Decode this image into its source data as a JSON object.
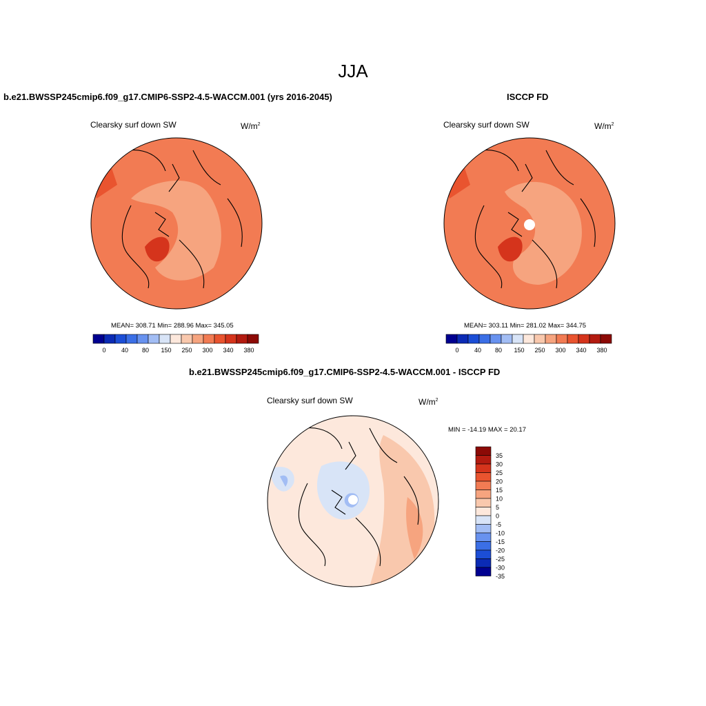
{
  "season": "JJA",
  "panels": [
    {
      "title": "b.e21.BWSSP245cmip6.f09_g17.CMIP6-SSP2-4.5-WACCM.001 (yrs 2016-2045)",
      "variable": "Clearsky surf down SW",
      "units_base": "W/m",
      "units_exp": "2",
      "stats": "MEAN= 308.71  Min= 288.96  Max= 345.05"
    },
    {
      "title": "ISCCP FD",
      "variable": "Clearsky surf down SW",
      "units_base": "W/m",
      "units_exp": "2",
      "stats": "MEAN= 303.11  Min= 281.02  Max= 344.75"
    },
    {
      "title": "b.e21.BWSSP245cmip6.f09_g17.CMIP6-SSP2-4.5-WACCM.001 - ISCCP FD",
      "variable": "Clearsky surf down SW",
      "units_base": "W/m",
      "units_exp": "2",
      "stats": "MIN = -14.19 MAX =  20.17"
    }
  ],
  "abs_colorbar": {
    "colors": [
      "#000090",
      "#0b2bb5",
      "#1c4ed6",
      "#3b6fe6",
      "#6892ef",
      "#a2bdf4",
      "#d8e4f7",
      "#fde8dc",
      "#f9c8ad",
      "#f6a47f",
      "#f27b53",
      "#e9542f",
      "#d5341c",
      "#b31b10",
      "#8c0a06"
    ],
    "labels": [
      "0",
      "40",
      "80",
      "150",
      "250",
      "300",
      "340",
      "380"
    ]
  },
  "diff_colorbar": {
    "colors": [
      "#8c0a06",
      "#b31b10",
      "#d5341c",
      "#e9542f",
      "#f27b53",
      "#f6a47f",
      "#f9c8ad",
      "#fde8dc",
      "#d8e4f7",
      "#a2bdf4",
      "#6892ef",
      "#3b6fe6",
      "#1c4ed6",
      "#0b2bb5",
      "#000090"
    ],
    "labels": [
      "35",
      "30",
      "25",
      "20",
      "15",
      "10",
      "5",
      "0",
      "-5",
      "-10",
      "-15",
      "-20",
      "-25",
      "-30",
      "-35"
    ]
  },
  "map_colors": {
    "ocean_base": "#f27b53",
    "warm_light": "#f6a47f",
    "warm_dark": "#e9542f",
    "hot": "#d5341c",
    "diff_base": "#fde8dc",
    "diff_pos": "#f9c8ad",
    "diff_pos_strong": "#f6a47f",
    "diff_neg": "#d8e4f7",
    "diff_neg_strong": "#a2bdf4",
    "coast": "#000000"
  }
}
